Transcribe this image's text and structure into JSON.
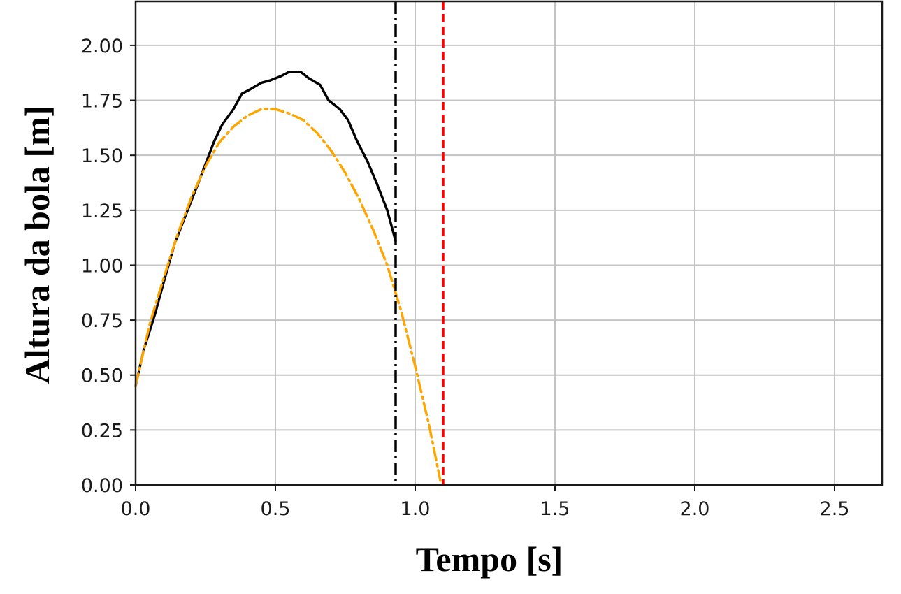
{
  "chart_data": {
    "type": "line",
    "title": "",
    "xlabel": "Tempo [s]",
    "ylabel": "Altura da bola [m]",
    "xlim": [
      0.0,
      2.67
    ],
    "ylim": [
      0.0,
      2.2
    ],
    "xticks": [
      "0.0",
      "0.5",
      "1.0",
      "1.5",
      "2.0",
      "2.5"
    ],
    "yticks": [
      "0.00",
      "0.25",
      "0.50",
      "0.75",
      "1.00",
      "1.25",
      "1.50",
      "1.75",
      "2.00"
    ],
    "grid": true,
    "legend": "none",
    "series": [
      {
        "style": "solid",
        "color": "#000000",
        "x": [
          0.0,
          0.03,
          0.07,
          0.1,
          0.14,
          0.18,
          0.22,
          0.25,
          0.28,
          0.31,
          0.35,
          0.38,
          0.41,
          0.45,
          0.48,
          0.52,
          0.55,
          0.59,
          0.62,
          0.66,
          0.69,
          0.73,
          0.76,
          0.79,
          0.83,
          0.86,
          0.9,
          0.93
        ],
        "y": [
          0.45,
          0.62,
          0.78,
          0.92,
          1.1,
          1.23,
          1.36,
          1.46,
          1.56,
          1.64,
          1.71,
          1.78,
          1.8,
          1.83,
          1.84,
          1.86,
          1.88,
          1.88,
          1.85,
          1.82,
          1.75,
          1.71,
          1.66,
          1.57,
          1.47,
          1.38,
          1.25,
          1.11
        ]
      },
      {
        "style": "dash-dot",
        "color": "#FFA500",
        "x": [
          0.0,
          0.05,
          0.1,
          0.15,
          0.2,
          0.25,
          0.3,
          0.35,
          0.4,
          0.45,
          0.5,
          0.55,
          0.6,
          0.65,
          0.7,
          0.75,
          0.8,
          0.85,
          0.9,
          0.95,
          1.0,
          1.05,
          1.09
        ],
        "y": [
          0.45,
          0.73,
          0.94,
          1.14,
          1.31,
          1.45,
          1.56,
          1.63,
          1.68,
          1.71,
          1.71,
          1.69,
          1.66,
          1.6,
          1.52,
          1.42,
          1.3,
          1.16,
          1.0,
          0.79,
          0.54,
          0.27,
          0.02
        ]
      }
    ],
    "vlines": [
      {
        "x": 0.93,
        "style": "dash-dot",
        "color": "#000000"
      },
      {
        "x": 1.1,
        "style": "dashed",
        "color": "#FF0000"
      }
    ]
  }
}
